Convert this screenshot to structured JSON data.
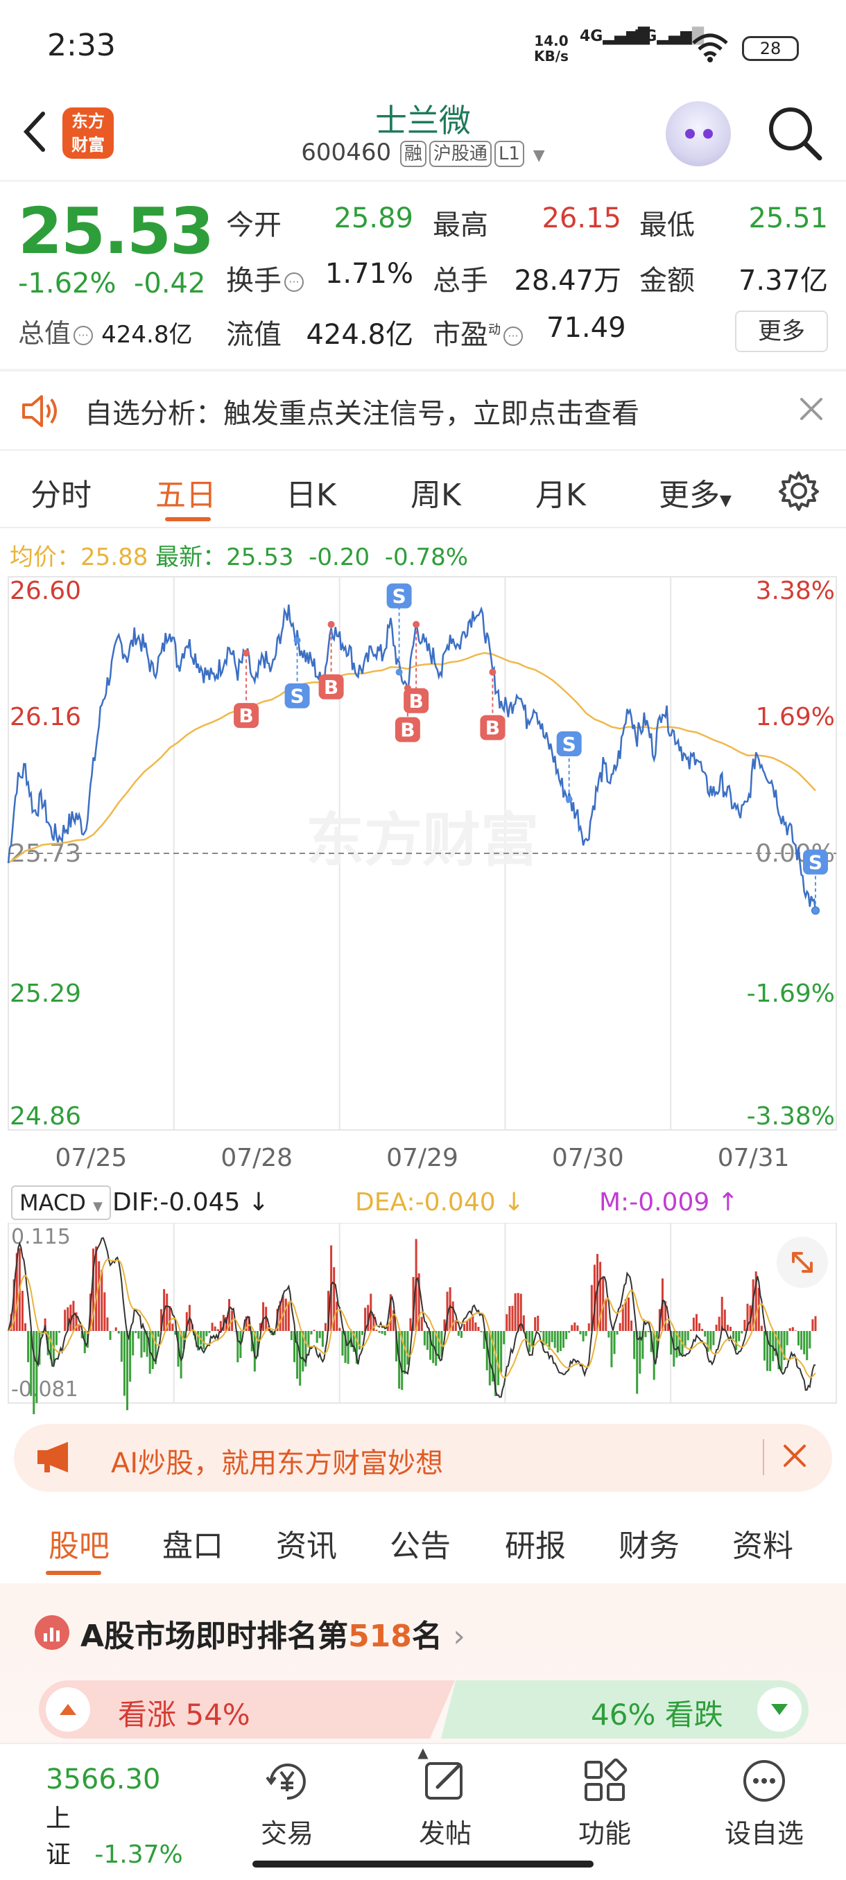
{
  "status_bar": {
    "time": "2:33",
    "net_speed": "14.0",
    "net_unit": "KB/s",
    "net1": "4G",
    "net2": "5G",
    "battery": "28"
  },
  "header": {
    "logo_line1": "东方",
    "logo_line2": "财富",
    "stock_name": "士兰微",
    "stock_code": "600460",
    "tags": [
      "融",
      "沪股通",
      "L1"
    ]
  },
  "quote": {
    "price": "25.53",
    "change_pct": "-1.62%",
    "change": "-0.42",
    "total_value_label": "总值",
    "total_value": "424.8亿",
    "open_label": "今开",
    "open": "25.89",
    "turnover_label": "换手",
    "turnover": "1.71%",
    "float_label": "流值",
    "float_value": "424.8亿",
    "high_label": "最高",
    "high": "26.15",
    "volume_label": "总手",
    "volume": "28.47万",
    "pe_label": "市盈",
    "pe_sup": "动",
    "pe": "71.49",
    "low_label": "最低",
    "low": "25.51",
    "amount_label": "金额",
    "amount": "7.37亿",
    "more_label": "更多"
  },
  "alert": {
    "text": "自选分析：触发重点关注信号，立即点击查看"
  },
  "chart_tabs": {
    "items": [
      "分时",
      "五日",
      "日K",
      "周K",
      "月K",
      "更多"
    ],
    "active": "五日"
  },
  "info_line": {
    "avg_label": "均价：",
    "avg": "25.88",
    "latest_label": "最新：",
    "latest": "25.53",
    "change": "-0.20",
    "change_pct": "-0.78%"
  },
  "chart_data": {
    "type": "line",
    "x_labels": [
      "07/25",
      "07/28",
      "07/29",
      "07/30",
      "07/31"
    ],
    "y_left_ticks": [
      "26.60",
      "26.16",
      "25.73",
      "25.29",
      "24.86"
    ],
    "y_right_ticks": [
      "3.38%",
      "1.69%",
      "0.00%",
      "-1.69%",
      "-3.38%"
    ],
    "ylim": [
      24.86,
      26.6
    ],
    "reference_price": 25.73,
    "watermark": "东方财富",
    "price_series": [
      25.7,
      25.95,
      26.0,
      25.86,
      25.9,
      25.8,
      25.78,
      25.82,
      25.85,
      25.8,
      26.0,
      26.2,
      26.3,
      26.4,
      26.35,
      26.42,
      26.38,
      26.3,
      26.35,
      26.45,
      26.32,
      26.4,
      26.35,
      26.3,
      26.28,
      26.32,
      26.38,
      26.3,
      26.36,
      26.25,
      26.35,
      26.3,
      26.42,
      26.5,
      26.4,
      26.35,
      26.32,
      26.25,
      26.45,
      26.4,
      26.38,
      26.3,
      26.32,
      26.38,
      26.35,
      26.45,
      26.3,
      26.25,
      26.45,
      26.38,
      26.35,
      26.3,
      26.42,
      26.38,
      26.45,
      26.5,
      26.45,
      26.3,
      26.2,
      26.18,
      26.25,
      26.15,
      26.2,
      26.1,
      26.05,
      25.95,
      25.9,
      25.85,
      25.76,
      25.9,
      26.0,
      25.95,
      26.05,
      26.2,
      26.1,
      26.15,
      26.05,
      26.2,
      26.12,
      26.08,
      26.0,
      26.05,
      25.95,
      25.92,
      25.95,
      25.9,
      25.85,
      25.88,
      26.05,
      26.0,
      25.95,
      25.85,
      25.8,
      25.72,
      25.6,
      25.55
    ],
    "avg_series_points": 96,
    "markers": [
      {
        "label": "B",
        "type": "buy"
      },
      {
        "label": "S",
        "type": "sell"
      },
      {
        "label": "B",
        "type": "buy"
      },
      {
        "label": "S",
        "type": "sell"
      },
      {
        "label": "B",
        "type": "buy"
      },
      {
        "label": "B",
        "type": "buy"
      },
      {
        "label": "S",
        "type": "sell"
      },
      {
        "label": "B",
        "type": "buy"
      },
      {
        "label": "S",
        "type": "sell"
      }
    ]
  },
  "macd": {
    "selector": "MACD",
    "dif_label": "DIF:",
    "dif": "-0.045",
    "dea_label": "DEA:",
    "dea": "-0.040",
    "m_label": "M:",
    "m": "-0.009",
    "top_tick": "0.115",
    "bottom_tick": "-0.081"
  },
  "ai_banner": {
    "text": "AI炒股，就用东方财富妙想"
  },
  "bottom_tabs": {
    "items": [
      "股吧",
      "盘口",
      "资讯",
      "公告",
      "研报",
      "财务",
      "资料"
    ],
    "active": "股吧"
  },
  "rank": {
    "prefix": "A股市场即时排名第",
    "number": "518",
    "suffix": "名",
    "up_label": "看涨 54%",
    "down_label": "46% 看跌"
  },
  "nav": {
    "index_value": "3566.30",
    "index_name": "上证",
    "index_change": "-1.37%",
    "items": [
      "交易",
      "发帖",
      "功能",
      "设自选"
    ]
  },
  "colors": {
    "up": "#d43c33",
    "down": "#2e9e3a",
    "accent": "#e4662a",
    "price_line": "#3c6fc4",
    "avg_line": "#f0b84a"
  }
}
